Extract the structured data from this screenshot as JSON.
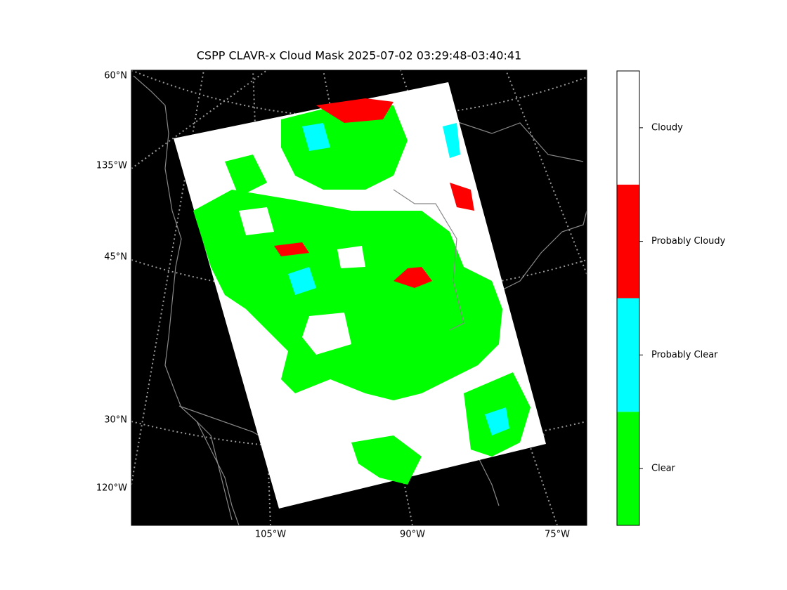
{
  "title": "CSPP CLAVR-x Cloud Mask 2025-07-02 03:29:48-03:40:41",
  "map": {
    "left_labels": [
      "60°N",
      "135°W",
      "45°N",
      "30°N",
      "120°W"
    ],
    "bottom_labels": [
      "105°W",
      "90°W",
      "75°W"
    ]
  },
  "colorbar": {
    "classes": [
      {
        "label": "Clear",
        "color": "#00ff00"
      },
      {
        "label": "Probably Clear",
        "color": "#00ffff"
      },
      {
        "label": "Probably Cloudy",
        "color": "#ff0000"
      },
      {
        "label": "Cloudy",
        "color": "#ffffff"
      }
    ]
  }
}
